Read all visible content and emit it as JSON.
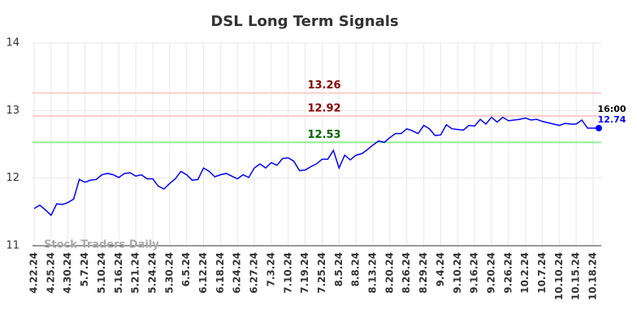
{
  "chart_data": {
    "type": "line",
    "title": "DSL Long Term Signals",
    "categories": [
      "4.22.24",
      null,
      null,
      "4.25.24",
      null,
      null,
      "4.30.24",
      null,
      null,
      "5.7.24",
      null,
      null,
      "5.10.24",
      null,
      null,
      "5.16.24",
      null,
      null,
      "5.21.24",
      null,
      null,
      "5.24.24",
      null,
      null,
      "5.30.24",
      null,
      null,
      "6.5.24",
      null,
      null,
      "6.12.24",
      null,
      null,
      "6.18.24",
      null,
      null,
      "6.24.24",
      null,
      null,
      "6.27.24",
      null,
      null,
      "7.3.24",
      null,
      null,
      "7.10.24",
      null,
      null,
      "7.19.24",
      null,
      null,
      "7.25.24",
      null,
      null,
      "8.5.24",
      null,
      null,
      "8.8.24",
      null,
      null,
      "8.13.24",
      null,
      null,
      "8.20.24",
      null,
      null,
      "8.26.24",
      null,
      null,
      "8.29.24",
      null,
      null,
      "9.4.24",
      null,
      null,
      "9.10.24",
      null,
      null,
      "9.16.24",
      null,
      null,
      "9.20.24",
      null,
      null,
      "9.26.24",
      null,
      null,
      "10.2.24",
      null,
      null,
      "10.7.24",
      null,
      null,
      "10.10.24",
      null,
      null,
      "10.15.24",
      null,
      null,
      "10.18.24",
      null
    ],
    "series": [
      {
        "color": "#0000ff",
        "values": [
          11.55,
          11.6,
          11.53,
          11.45,
          11.62,
          11.61,
          11.64,
          11.69,
          11.98,
          11.94,
          11.97,
          11.98,
          12.05,
          12.07,
          12.05,
          12.01,
          12.07,
          12.08,
          12.03,
          12.05,
          11.99,
          11.99,
          11.88,
          11.84,
          11.92,
          11.99,
          12.1,
          12.05,
          11.97,
          11.98,
          12.15,
          12.1,
          12.02,
          12.05,
          12.07,
          12.03,
          11.99,
          12.05,
          12.01,
          12.15,
          12.21,
          12.15,
          12.23,
          12.19,
          12.29,
          12.3,
          12.25,
          12.11,
          12.12,
          12.17,
          12.21,
          12.28,
          12.28,
          12.41,
          12.15,
          12.34,
          12.27,
          12.34,
          12.36,
          12.42,
          12.49,
          12.55,
          12.53,
          12.6,
          12.66,
          12.66,
          12.73,
          12.7,
          12.66,
          12.78,
          12.73,
          12.63,
          12.64,
          12.79,
          12.73,
          12.72,
          12.71,
          12.78,
          12.77,
          12.87,
          12.8,
          12.9,
          12.83,
          12.9,
          12.85,
          12.86,
          12.87,
          12.89,
          12.86,
          12.87,
          12.84,
          12.82,
          12.8,
          12.78,
          12.81,
          12.8,
          12.8,
          12.86,
          12.74,
          12.74,
          12.74
        ]
      }
    ],
    "hlines": [
      {
        "value": 13.26,
        "color": "#ffcccc",
        "label_color": "#8b0000"
      },
      {
        "value": 12.92,
        "color": "#ffcccc",
        "label_color": "#8b0000"
      },
      {
        "value": 12.53,
        "color": "#90ee90",
        "label_color": "#006400"
      }
    ],
    "last_time": "16:00",
    "watermark": "Stock Traders Daily",
    "ylim": [
      11,
      14
    ],
    "yticks": [
      11,
      12,
      13,
      14
    ],
    "grid": true
  }
}
